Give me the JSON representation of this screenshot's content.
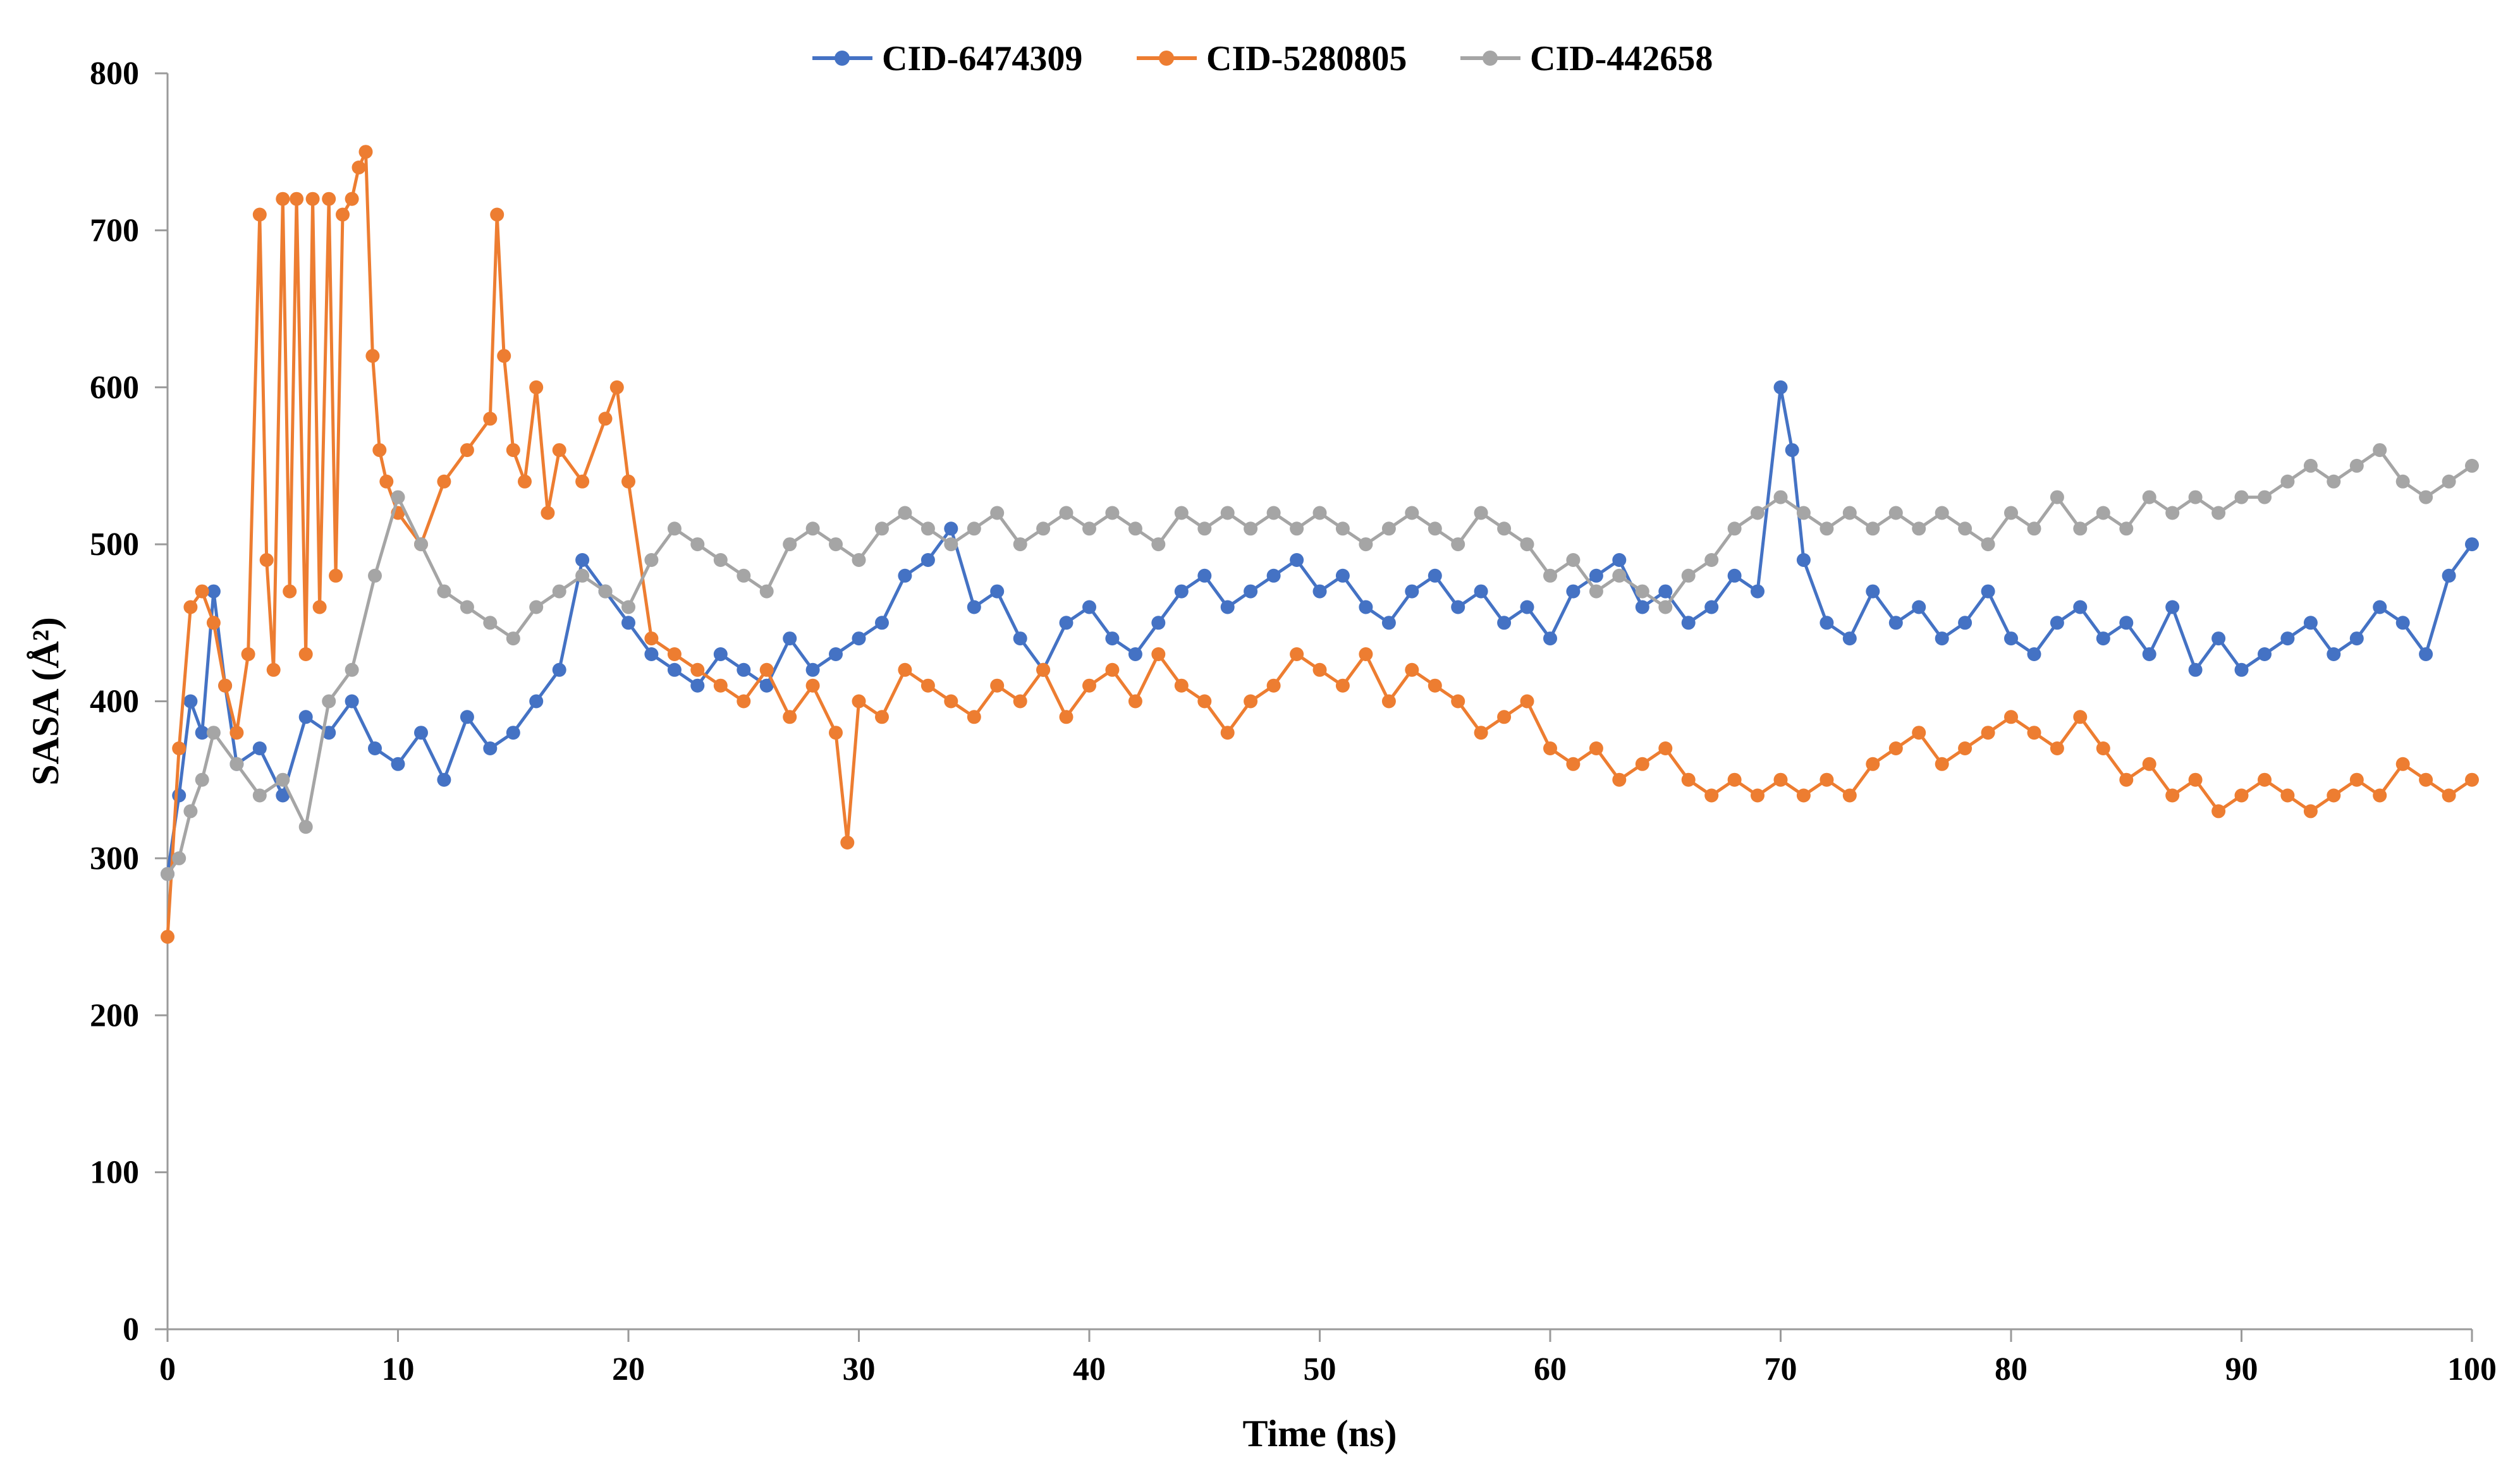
{
  "chart_data": {
    "type": "line",
    "title": "",
    "xlabel": "Time (ns)",
    "ylabel": "SASA (Å²)",
    "xlim": [
      0,
      100
    ],
    "ylim": [
      0,
      800
    ],
    "xticks": [
      0,
      10,
      20,
      30,
      40,
      50,
      60,
      70,
      80,
      90,
      100
    ],
    "yticks": [
      0,
      100,
      200,
      300,
      400,
      500,
      600,
      700,
      800
    ],
    "xtick_labels": [
      "0",
      "10",
      "20",
      "30",
      "40",
      "50",
      "60",
      "70",
      "80",
      "90",
      "100"
    ],
    "ytick_labels": [
      "0",
      "100",
      "200",
      "300",
      "400",
      "500",
      "600",
      "700",
      "800"
    ],
    "grid": false,
    "legend_position": "top-center",
    "series": [
      {
        "name": "CID-6474309",
        "color": "#4472C4",
        "x": [
          0,
          0.5,
          1,
          1.5,
          2,
          2.5,
          3,
          4,
          5,
          6,
          7,
          8,
          9,
          10,
          11,
          12,
          13,
          14,
          15,
          16,
          17,
          18,
          19,
          20,
          21,
          22,
          23,
          24,
          25,
          26,
          27,
          28,
          29,
          30,
          31,
          32,
          33,
          34,
          35,
          36,
          37,
          38,
          39,
          40,
          41,
          42,
          43,
          44,
          45,
          46,
          47,
          48,
          49,
          50,
          51,
          52,
          53,
          54,
          55,
          56,
          57,
          58,
          59,
          60,
          61,
          62,
          63,
          64,
          65,
          66,
          67,
          68,
          69,
          70,
          70.5,
          71,
          72,
          73,
          74,
          75,
          76,
          77,
          78,
          79,
          80,
          81,
          82,
          83,
          84,
          85,
          86,
          87,
          88,
          89,
          90,
          91,
          92,
          93,
          94,
          95,
          96,
          97,
          98,
          99,
          100
        ],
        "values": [
          290,
          340,
          400,
          380,
          470,
          410,
          360,
          370,
          340,
          390,
          380,
          400,
          370,
          360,
          380,
          350,
          390,
          370,
          380,
          400,
          420,
          490,
          470,
          450,
          430,
          420,
          410,
          430,
          420,
          410,
          440,
          420,
          430,
          440,
          450,
          480,
          490,
          510,
          460,
          470,
          440,
          420,
          450,
          460,
          440,
          430,
          450,
          470,
          480,
          460,
          470,
          480,
          490,
          470,
          480,
          460,
          450,
          470,
          480,
          460,
          470,
          450,
          460,
          440,
          470,
          480,
          490,
          460,
          470,
          450,
          460,
          480,
          470,
          600,
          560,
          490,
          450,
          440,
          470,
          450,
          460,
          440,
          450,
          470,
          440,
          430,
          450,
          460,
          440,
          450,
          430,
          460,
          420,
          440,
          420,
          430,
          440,
          450,
          430,
          440,
          460,
          450,
          430,
          480,
          500
        ]
      },
      {
        "name": "CID-5280805",
        "color": "#ED7D31",
        "x": [
          0,
          0.5,
          1,
          1.5,
          2,
          2.5,
          3,
          3.5,
          4,
          4.3,
          4.6,
          5,
          5.3,
          5.6,
          6,
          6.3,
          6.6,
          7,
          7.3,
          7.6,
          8,
          8.3,
          8.6,
          8.9,
          9.2,
          9.5,
          10,
          11,
          12,
          13,
          14,
          14.3,
          14.6,
          15,
          15.5,
          16,
          16.5,
          17,
          18,
          19,
          19.5,
          20,
          21,
          22,
          23,
          24,
          25,
          26,
          27,
          28,
          29,
          29.5,
          30,
          31,
          32,
          33,
          34,
          35,
          36,
          37,
          38,
          39,
          40,
          41,
          42,
          43,
          44,
          45,
          46,
          47,
          48,
          49,
          50,
          51,
          52,
          53,
          54,
          55,
          56,
          57,
          58,
          59,
          60,
          61,
          62,
          63,
          64,
          65,
          66,
          67,
          68,
          69,
          70,
          71,
          72,
          73,
          74,
          75,
          76,
          77,
          78,
          79,
          80,
          81,
          82,
          83,
          84,
          85,
          86,
          87,
          88,
          89,
          90,
          91,
          92,
          93,
          94,
          95,
          96,
          97,
          98,
          99,
          100
        ],
        "values": [
          250,
          370,
          460,
          470,
          450,
          410,
          380,
          430,
          710,
          490,
          420,
          720,
          470,
          720,
          430,
          720,
          460,
          720,
          480,
          710,
          720,
          740,
          750,
          620,
          560,
          540,
          520,
          500,
          540,
          560,
          580,
          710,
          620,
          560,
          540,
          600,
          520,
          560,
          540,
          580,
          600,
          540,
          440,
          430,
          420,
          410,
          400,
          420,
          390,
          410,
          380,
          310,
          400,
          390,
          420,
          410,
          400,
          390,
          410,
          400,
          420,
          390,
          410,
          420,
          400,
          430,
          410,
          400,
          380,
          400,
          410,
          430,
          420,
          410,
          430,
          400,
          420,
          410,
          400,
          380,
          390,
          400,
          370,
          360,
          370,
          350,
          360,
          370,
          350,
          340,
          350,
          340,
          350,
          340,
          350,
          340,
          360,
          370,
          380,
          360,
          370,
          380,
          390,
          380,
          370,
          390,
          370,
          350,
          360,
          340,
          350,
          330,
          340,
          350,
          340,
          330,
          340,
          350,
          340,
          360,
          350,
          340,
          350
        ]
      },
      {
        "name": "CID-442658",
        "color": "#A5A5A5",
        "x": [
          0,
          0.5,
          1,
          1.5,
          2,
          3,
          4,
          5,
          6,
          7,
          8,
          9,
          10,
          11,
          12,
          13,
          14,
          15,
          16,
          17,
          18,
          19,
          20,
          21,
          22,
          23,
          24,
          25,
          26,
          27,
          28,
          29,
          30,
          31,
          32,
          33,
          34,
          35,
          36,
          37,
          38,
          39,
          40,
          41,
          42,
          43,
          44,
          45,
          46,
          47,
          48,
          49,
          50,
          51,
          52,
          53,
          54,
          55,
          56,
          57,
          58,
          59,
          60,
          61,
          62,
          63,
          64,
          65,
          66,
          67,
          68,
          69,
          70,
          71,
          72,
          73,
          74,
          75,
          76,
          77,
          78,
          79,
          80,
          81,
          82,
          83,
          84,
          85,
          86,
          87,
          88,
          89,
          90,
          91,
          92,
          93,
          94,
          95,
          96,
          97,
          98,
          99,
          100
        ],
        "values": [
          290,
          300,
          330,
          350,
          380,
          360,
          340,
          350,
          320,
          400,
          420,
          480,
          530,
          500,
          470,
          460,
          450,
          440,
          460,
          470,
          480,
          470,
          460,
          490,
          510,
          500,
          490,
          480,
          470,
          500,
          510,
          500,
          490,
          510,
          520,
          510,
          500,
          510,
          520,
          500,
          510,
          520,
          510,
          520,
          510,
          500,
          520,
          510,
          520,
          510,
          520,
          510,
          520,
          510,
          500,
          510,
          520,
          510,
          500,
          520,
          510,
          500,
          480,
          490,
          470,
          480,
          470,
          460,
          480,
          490,
          510,
          520,
          530,
          520,
          510,
          520,
          510,
          520,
          510,
          520,
          510,
          500,
          520,
          510,
          530,
          510,
          520,
          510,
          530,
          520,
          530,
          520,
          530,
          530,
          540,
          550,
          540,
          550,
          560,
          540,
          530,
          540,
          550
        ]
      }
    ]
  }
}
